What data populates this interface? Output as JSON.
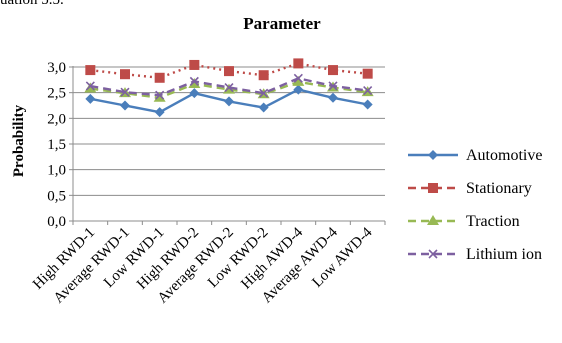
{
  "page": {
    "top_text": "uation 5.5."
  },
  "chart_data": {
    "type": "line",
    "title": "Parameter",
    "xlabel": "",
    "ylabel": "Probability",
    "ylim": [
      0,
      3
    ],
    "ytick_step": 0.5,
    "ytick_labels": [
      "0,0",
      "0,5",
      "1,0",
      "1,5",
      "2,0",
      "2,5",
      "3,0"
    ],
    "grid": true,
    "legend_position": "right",
    "categories": [
      "High RWD-1",
      "Average RWD-1",
      "Low RWD-1",
      "High RWD-2",
      "Average RWD-2",
      "Low RWD-2",
      "High AWD-4",
      "Average AWD-4",
      "Low AWD-4"
    ],
    "series": [
      {
        "name": "Automotive",
        "values": [
          2.38,
          2.25,
          2.12,
          2.49,
          2.33,
          2.21,
          2.56,
          2.4,
          2.27
        ],
        "color": "#4a7ebb",
        "marker": "diamond",
        "dash": "solid"
      },
      {
        "name": "Stationary",
        "values": [
          2.94,
          2.86,
          2.79,
          3.04,
          2.92,
          2.84,
          3.07,
          2.94,
          2.87
        ],
        "color": "#be4b48",
        "marker": "square",
        "dash": "dotted"
      },
      {
        "name": "Traction",
        "values": [
          2.58,
          2.49,
          2.4,
          2.67,
          2.56,
          2.47,
          2.71,
          2.6,
          2.51
        ],
        "color": "#98b954",
        "marker": "triangle",
        "dash": "dashed"
      },
      {
        "name": "Lithium ion",
        "values": [
          2.63,
          2.51,
          2.45,
          2.72,
          2.6,
          2.49,
          2.78,
          2.63,
          2.54
        ],
        "color": "#7d60a0",
        "marker": "x",
        "dash": "dashed"
      }
    ]
  }
}
